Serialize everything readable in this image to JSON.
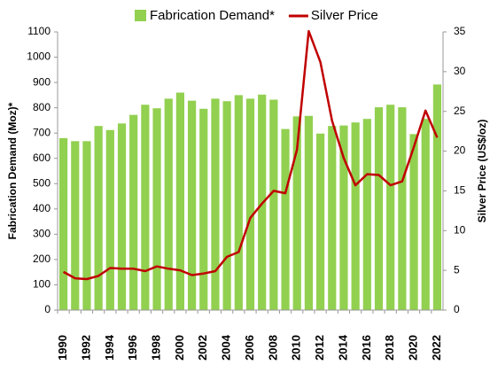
{
  "chart_data": {
    "type": "bar-line",
    "categories": [
      "1990",
      null,
      "1992",
      null,
      "1994",
      null,
      "1996",
      null,
      "1998",
      null,
      "2000",
      null,
      "2002",
      null,
      "2004",
      null,
      "2006",
      null,
      "2008",
      null,
      "2010",
      null,
      "2012",
      null,
      "2014",
      null,
      "2016",
      null,
      "2018",
      null,
      "2020",
      null,
      "2022"
    ],
    "series": [
      {
        "name": "Fabrication Demand*",
        "color": "#92d050",
        "type": "bar",
        "axis": "y",
        "values": [
          680,
          668,
          668,
          728,
          712,
          738,
          772,
          812,
          798,
          836,
          860,
          828,
          796,
          836,
          826,
          850,
          836,
          852,
          832,
          716,
          766,
          768,
          698,
          728,
          730,
          742,
          756,
          802,
          812,
          802,
          696,
          756,
          892
        ]
      },
      {
        "name": "Silver Price",
        "color": "#c00000",
        "type": "line",
        "axis": "y2",
        "values": [
          4.8,
          4.0,
          3.9,
          4.3,
          5.3,
          5.2,
          5.2,
          4.9,
          5.5,
          5.2,
          5.0,
          4.4,
          4.6,
          4.9,
          6.7,
          7.3,
          11.6,
          13.4,
          15.0,
          14.7,
          20.2,
          35.1,
          31.2,
          23.8,
          19.1,
          15.7,
          17.1,
          17.0,
          15.7,
          16.2,
          20.5,
          25.1,
          21.7
        ]
      }
    ],
    "ylabel": "Fabrication Demand (Moz)*",
    "y2label": "Silver Price (US$/oz)",
    "ylim": [
      0,
      1100
    ],
    "yticks": [
      0,
      100,
      200,
      300,
      400,
      500,
      600,
      700,
      800,
      900,
      1000,
      1100
    ],
    "y2lim": [
      0,
      35
    ],
    "y2ticks": [
      0,
      5,
      10,
      15,
      20,
      25,
      30,
      35
    ],
    "legend": "top"
  }
}
